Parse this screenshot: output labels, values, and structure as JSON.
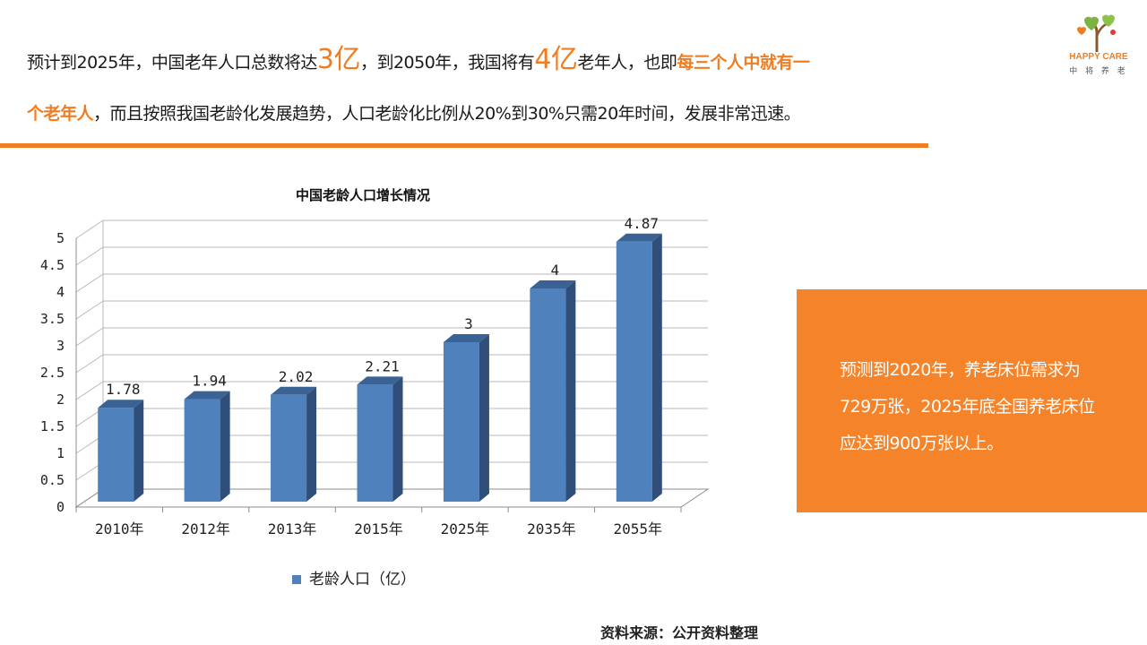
{
  "intro": {
    "t1": "预计到2025年，中国老年人口总数将达",
    "n1": "3亿",
    "t2": "，到2050年，我国将有",
    "n2": "4亿",
    "t3": "老年人，也即",
    "hl1": "每三个人中就有一",
    "hl2": "个老年人",
    "t4": "，而且按照我国老龄化发展趋势，人口老龄化比例从20%到30%只需20年时间，发展非常迅速。"
  },
  "logo": {
    "name": "HAPPY CARE",
    "sub": "中 将 养 老",
    "icon": "tree-heart-icon"
  },
  "callout": {
    "text": "预测到2020年，养老床位需求为729万张，2025年底全国养老床位应达到900万张以上。"
  },
  "source": "资料来源：公开资料整理",
  "colors": {
    "accent": "#f07d22",
    "box": "#f5832a",
    "bar": "#4f81bd"
  },
  "chart_data": {
    "type": "bar",
    "title": "中国老龄人口增长情况",
    "categories": [
      "2010年",
      "2012年",
      "2013年",
      "2015年",
      "2025年",
      "2035年",
      "2055年"
    ],
    "series": [
      {
        "name": "老龄人口（亿）",
        "values": [
          1.78,
          1.94,
          2.02,
          2.21,
          3,
          4,
          4.87
        ],
        "labels": [
          "1.78",
          "1.94",
          "2.02",
          "2.21",
          "3",
          "4",
          "4.87"
        ]
      }
    ],
    "yticks": [
      "0",
      "0.5",
      "1",
      "1.5",
      "2",
      "2.5",
      "3",
      "3.5",
      "4",
      "4.5",
      "5"
    ],
    "ylim": [
      0,
      5
    ],
    "grid": true,
    "legend": "bottom",
    "style": "3d"
  }
}
